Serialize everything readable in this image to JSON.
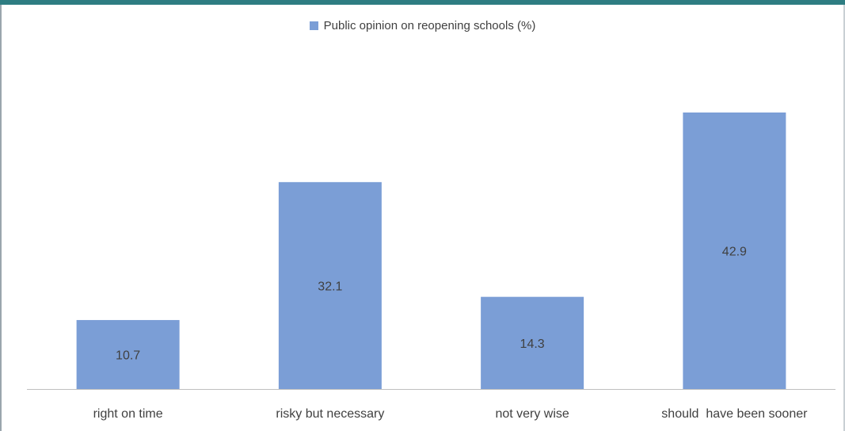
{
  "colors": {
    "bar": "#7b9ed6",
    "axis": "#bfbfbf",
    "text": "#404040",
    "top_bar": "#2e7d82"
  },
  "chart_data": {
    "type": "bar",
    "categories": [
      "right on time",
      "risky but necessary",
      "not very wise",
      "should  have been sooner"
    ],
    "series": [
      {
        "name": "Public opinion on reopening schools (%)",
        "values": [
          10.7,
          32.1,
          14.3,
          42.9
        ]
      }
    ],
    "ylim": [
      0,
      50
    ],
    "grid": false,
    "legend_position": "top-center",
    "data_labels": "inside-center"
  }
}
